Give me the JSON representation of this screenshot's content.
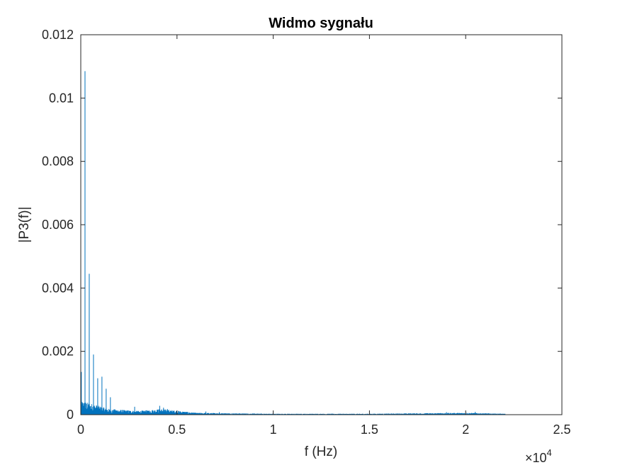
{
  "chart_data": {
    "type": "line",
    "title": "Widmo sygnału",
    "xlabel": "f (Hz)",
    "ylabel": "|P3(f)|",
    "x_exponent_base": "×10",
    "x_exponent_power": "4",
    "xlim": [
      0,
      25000
    ],
    "ylim": [
      0,
      0.012
    ],
    "x_ticks": [
      0,
      5000,
      10000,
      15000,
      20000,
      25000
    ],
    "x_tick_labels": [
      "0",
      "0.5",
      "1",
      "1.5",
      "2",
      "2.5"
    ],
    "y_ticks": [
      0,
      0.002,
      0.004,
      0.006,
      0.008,
      0.01,
      0.012
    ],
    "y_tick_labels": [
      "0",
      "0.002",
      "0.004",
      "0.006",
      "0.008",
      "0.01",
      "0.012"
    ],
    "grid": false,
    "line_color": "#0072BD",
    "series": [
      {
        "x_max": 22050,
        "peaks": [
          {
            "f": 30,
            "value": 0.00135
          },
          {
            "f": 220,
            "value": 0.01085
          },
          {
            "f": 440,
            "value": 0.00445
          },
          {
            "f": 660,
            "value": 0.0019
          },
          {
            "f": 880,
            "value": 0.00115
          },
          {
            "f": 1100,
            "value": 0.0012
          },
          {
            "f": 1320,
            "value": 0.00082
          },
          {
            "f": 1540,
            "value": 0.00055
          },
          {
            "f": 2800,
            "value": 0.00025
          },
          {
            "f": 4100,
            "value": 0.00028
          },
          {
            "f": 4300,
            "value": 0.00022
          },
          {
            "f": 4500,
            "value": 0.00018
          },
          {
            "f": 6500,
            "value": 0.0001
          },
          {
            "f": 7200,
            "value": 8e-05
          },
          {
            "f": 19000,
            "value": 8e-05
          },
          {
            "f": 20500,
            "value": 9e-05
          }
        ],
        "noise_floor": [
          {
            "f": 0,
            "value": 0.0003
          },
          {
            "f": 1500,
            "value": 0.00012
          },
          {
            "f": 3000,
            "value": 8e-05
          },
          {
            "f": 4200,
            "value": 0.00012
          },
          {
            "f": 6000,
            "value": 4e-05
          },
          {
            "f": 10000,
            "value": 2e-05
          },
          {
            "f": 15000,
            "value": 2e-05
          },
          {
            "f": 20000,
            "value": 4e-05
          },
          {
            "f": 22050,
            "value": 2e-05
          }
        ]
      }
    ]
  }
}
